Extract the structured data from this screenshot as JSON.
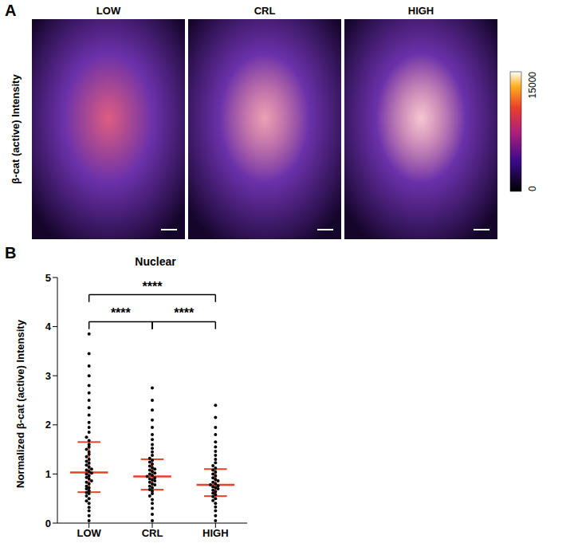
{
  "panel_a": {
    "label": "A",
    "y_label": "β-cat (active) Intensity",
    "columns": [
      "LOW",
      "CRL",
      "HIGH"
    ],
    "colorbar": {
      "range": [
        0,
        15000
      ],
      "ticks": [
        0,
        15000
      ]
    }
  },
  "chart_data": {
    "panel": "B",
    "type": "scatter",
    "title": "Nuclear",
    "ylabel": "Normalized β-cat (active) Intensity",
    "categories": [
      "LOW",
      "CRL",
      "HIGH"
    ],
    "color": "#000000",
    "values": [
      [
        0.05,
        0.15,
        0.25,
        0.32,
        0.4,
        0.45,
        0.5,
        0.55,
        0.6,
        0.62,
        0.66,
        0.7,
        0.72,
        0.75,
        0.8,
        0.83,
        0.86,
        0.9,
        0.93,
        0.96,
        1.0,
        1.02,
        1.05,
        1.08,
        1.1,
        1.14,
        1.18,
        1.22,
        1.26,
        1.3,
        1.35,
        1.4,
        1.45,
        1.5,
        1.55,
        1.6,
        1.68,
        1.75,
        1.85,
        1.95,
        2.05,
        2.2,
        2.35,
        2.5,
        2.65,
        2.8,
        3.0,
        3.2,
        3.45,
        3.85
      ],
      [
        0.05,
        0.18,
        0.3,
        0.4,
        0.48,
        0.55,
        0.6,
        0.65,
        0.68,
        0.72,
        0.75,
        0.78,
        0.8,
        0.83,
        0.86,
        0.88,
        0.9,
        0.92,
        0.95,
        0.97,
        1.0,
        1.02,
        1.05,
        1.08,
        1.1,
        1.13,
        1.16,
        1.2,
        1.24,
        1.28,
        1.32,
        1.38,
        1.45,
        1.52,
        1.6,
        1.7,
        1.8,
        1.95,
        2.1,
        2.3,
        2.5,
        2.75
      ],
      [
        0.05,
        0.15,
        0.25,
        0.33,
        0.4,
        0.46,
        0.5,
        0.54,
        0.58,
        0.61,
        0.64,
        0.67,
        0.7,
        0.72,
        0.74,
        0.76,
        0.78,
        0.8,
        0.83,
        0.86,
        0.89,
        0.92,
        0.96,
        1.0,
        1.04,
        1.08,
        1.12,
        1.17,
        1.23,
        1.3,
        1.38,
        1.46,
        1.55,
        1.65,
        1.8,
        1.95,
        2.15,
        2.4
      ]
    ],
    "summary": [
      {
        "center": 1.03,
        "lower": 0.63,
        "upper": 1.65
      },
      {
        "center": 0.95,
        "lower": 0.68,
        "upper": 1.3
      },
      {
        "center": 0.78,
        "lower": 0.55,
        "upper": 1.1
      }
    ],
    "annotations": [
      {
        "text": "****",
        "from": 0,
        "to": 2
      },
      {
        "text": "****",
        "from": 0,
        "to": 1
      },
      {
        "text": "****",
        "from": 1,
        "to": 2
      }
    ],
    "ylim": [
      0,
      5
    ],
    "yticks": [
      0,
      1,
      2,
      3,
      4,
      5
    ]
  }
}
